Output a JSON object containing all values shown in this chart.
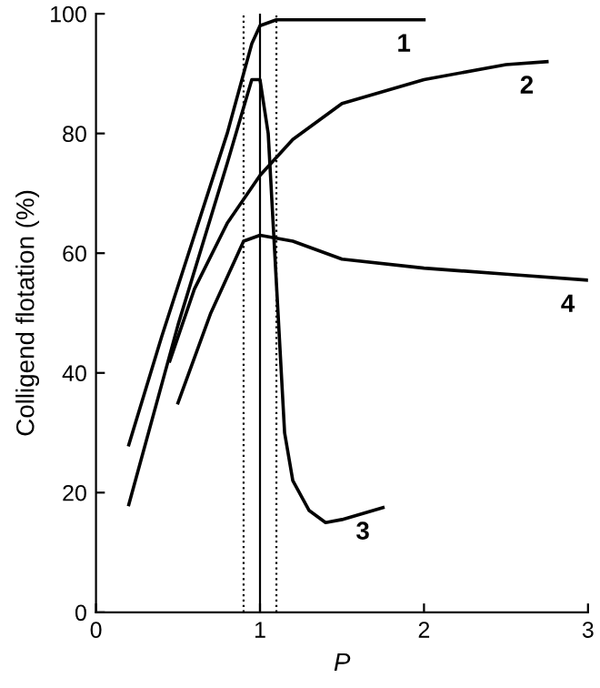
{
  "chart_data": {
    "type": "line",
    "xlabel": "P",
    "ylabel": "Colligend flotation (%)",
    "xlim": [
      0,
      3
    ],
    "ylim": [
      0,
      100
    ],
    "xticks": [
      0,
      1,
      2,
      3
    ],
    "yticks": [
      0,
      20,
      40,
      60,
      80,
      100
    ],
    "grid": false,
    "legend": false,
    "marker": "none",
    "line_style": "solid",
    "series": [
      {
        "name": "1",
        "color": "#000000",
        "x": [
          0.2,
          0.4,
          0.6,
          0.8,
          0.95,
          1.0,
          1.1,
          1.5,
          2.0
        ],
        "values": [
          28,
          46,
          63,
          80,
          95,
          98,
          99,
          99,
          99
        ]
      },
      {
        "name": "2",
        "color": "#000000",
        "x": [
          0.45,
          0.6,
          0.8,
          1.0,
          1.2,
          1.5,
          2.0,
          2.5,
          2.75
        ],
        "values": [
          42,
          54,
          65,
          73,
          79,
          85,
          89,
          91.5,
          92
        ]
      },
      {
        "name": "3",
        "color": "#000000",
        "x": [
          0.2,
          0.5,
          0.8,
          0.95,
          1.0,
          1.05,
          1.1,
          1.15,
          1.2,
          1.3,
          1.4,
          1.5,
          1.75
        ],
        "values": [
          18,
          48,
          75,
          89,
          89,
          80,
          55,
          30,
          22,
          17,
          15,
          15.5,
          17.5
        ]
      },
      {
        "name": "4",
        "color": "#000000",
        "x": [
          0.5,
          0.7,
          0.9,
          1.0,
          1.2,
          1.5,
          2.0,
          2.5,
          3.0
        ],
        "values": [
          35,
          50,
          62,
          63,
          62,
          59,
          57.5,
          56.5,
          55.5
        ]
      }
    ],
    "ref_lines": [
      {
        "axis": "x",
        "value": 0.9,
        "line_style": "dotted",
        "color": "#000000"
      },
      {
        "axis": "x",
        "value": 1.0,
        "line_style": "solid",
        "color": "#000000"
      },
      {
        "axis": "x",
        "value": 1.1,
        "line_style": "dotted",
        "color": "#000000"
      }
    ]
  }
}
